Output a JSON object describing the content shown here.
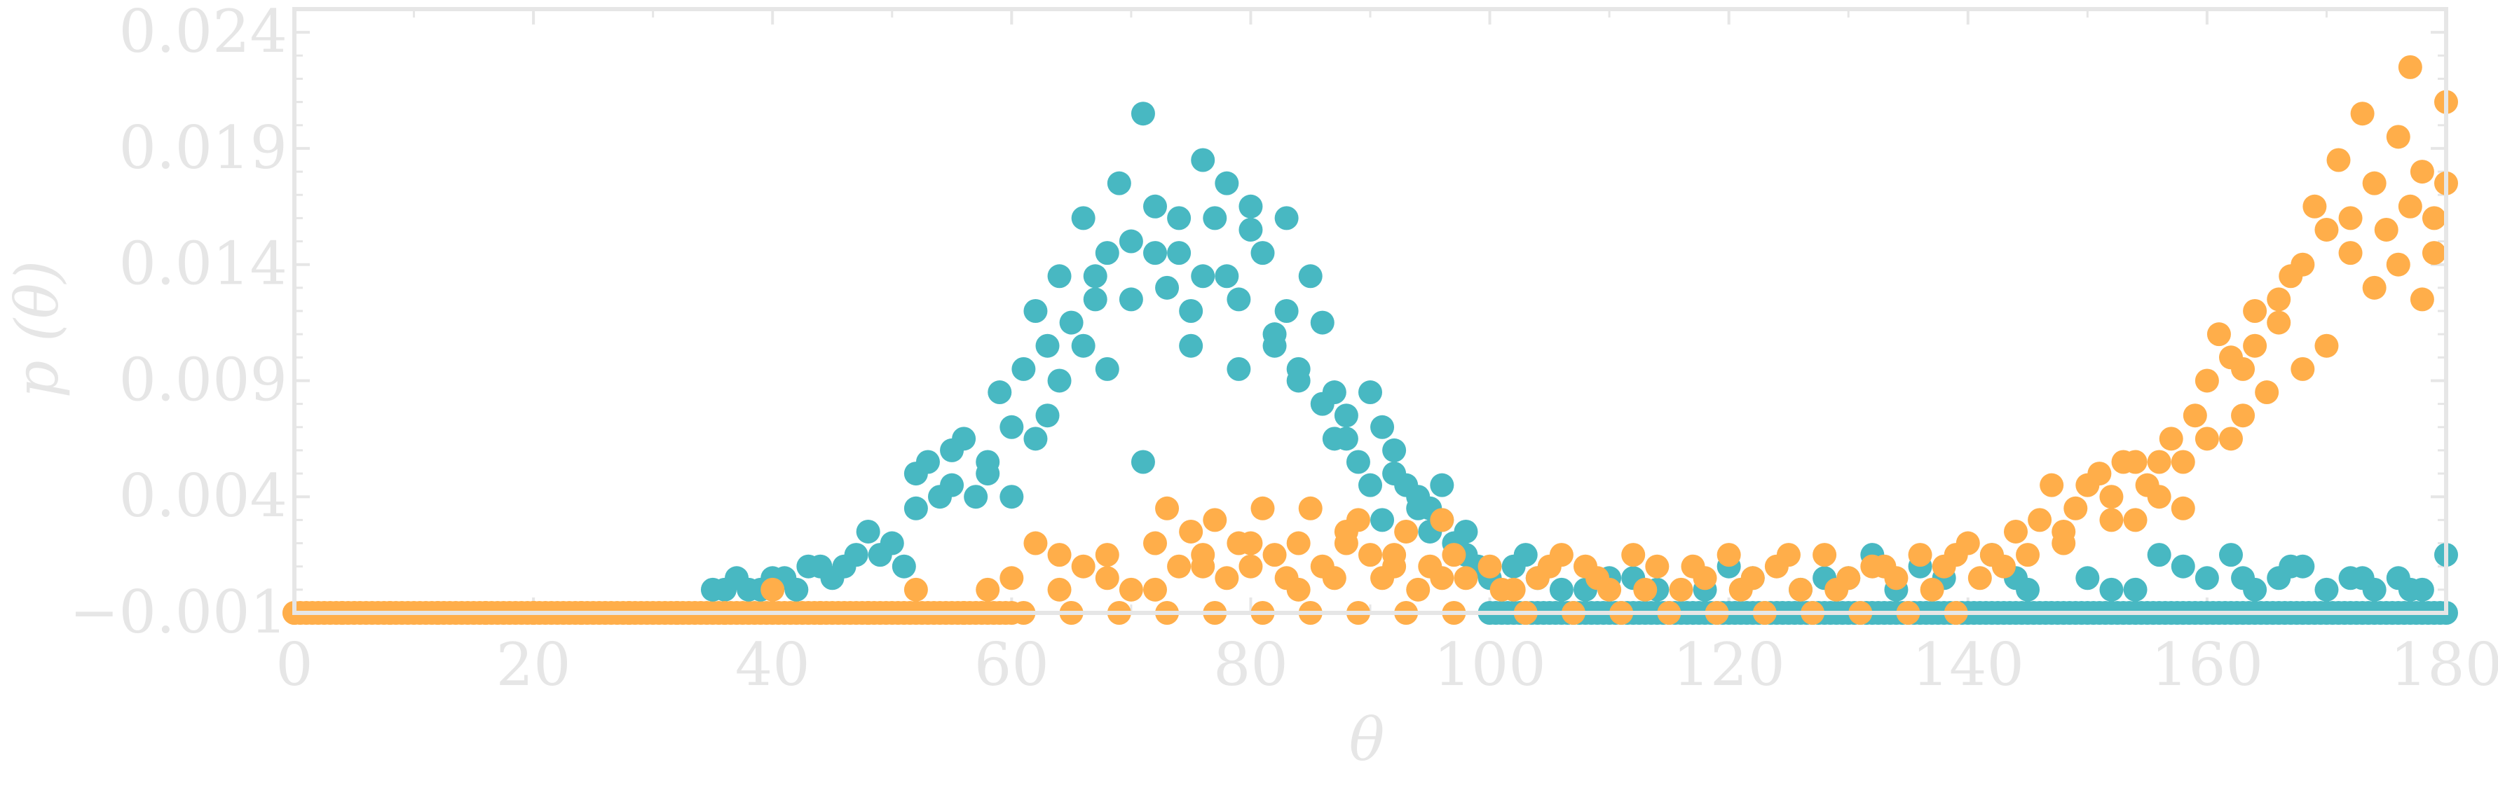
{
  "chart_data": {
    "type": "scatter",
    "xlabel": "θ",
    "ylabel": "p (θ)",
    "xlim": [
      0,
      180
    ],
    "ylim": [
      -0.001,
      0.025
    ],
    "x_ticks": [
      "0",
      "20",
      "40",
      "60",
      "80",
      "100",
      "120",
      "140",
      "160",
      "180"
    ],
    "y_ticks": [
      "−0.001",
      "0.004",
      "0.009",
      "0.014",
      "0.019",
      "0.024"
    ],
    "grid": false,
    "series": [
      {
        "color": "#48b8c2",
        "points": [
          [
            35,
            0.0
          ],
          [
            36,
            0.0
          ],
          [
            37,
            0.0005
          ],
          [
            38,
            0.0
          ],
          [
            39,
            0.0
          ],
          [
            40,
            0.0005
          ],
          [
            41,
            0.0005
          ],
          [
            42,
            0.0
          ],
          [
            43,
            0.001
          ],
          [
            44,
            0.001
          ],
          [
            45,
            0.0005
          ],
          [
            46,
            0.001
          ],
          [
            47,
            0.0015
          ],
          [
            48,
            0.0025
          ],
          [
            49,
            0.0015
          ],
          [
            50,
            0.002
          ],
          [
            51,
            0.001
          ],
          [
            52,
            0.005
          ],
          [
            53,
            0.0055
          ],
          [
            54,
            0.004
          ],
          [
            55,
            0.006
          ],
          [
            56,
            0.0065
          ],
          [
            57,
            0.004
          ],
          [
            58,
            0.0055
          ],
          [
            59,
            0.0085
          ],
          [
            60,
            0.007
          ],
          [
            61,
            0.0095
          ],
          [
            62,
            0.012
          ],
          [
            63,
            0.0105
          ],
          [
            64,
            0.0135
          ],
          [
            65,
            0.0115
          ],
          [
            66,
            0.016
          ],
          [
            67,
            0.0125
          ],
          [
            68,
            0.0145
          ],
          [
            69,
            0.0175
          ],
          [
            70,
            0.015
          ],
          [
            71,
            0.0205
          ],
          [
            72,
            0.0165
          ],
          [
            73,
            0.013
          ],
          [
            74,
            0.0145
          ],
          [
            75,
            0.012
          ],
          [
            76,
            0.0185
          ],
          [
            77,
            0.016
          ],
          [
            78,
            0.0135
          ],
          [
            79,
            0.0125
          ],
          [
            80,
            0.0165
          ],
          [
            81,
            0.0145
          ],
          [
            82,
            0.011
          ],
          [
            83,
            0.012
          ],
          [
            84,
            0.0095
          ],
          [
            85,
            0.0135
          ],
          [
            86,
            0.0115
          ],
          [
            87,
            0.0085
          ],
          [
            88,
            0.0075
          ],
          [
            89,
            0.0055
          ],
          [
            90,
            0.0045
          ],
          [
            91,
            0.007
          ],
          [
            92,
            0.006
          ],
          [
            93,
            0.0045
          ],
          [
            94,
            0.0035
          ],
          [
            95,
            0.0025
          ],
          [
            96,
            0.003
          ],
          [
            97,
            0.002
          ],
          [
            98,
            0.0015
          ],
          [
            99,
            0.001
          ],
          [
            100,
            0.0005
          ],
          [
            102,
            0.001
          ],
          [
            104,
            0.0005
          ],
          [
            106,
            0.0
          ],
          [
            108,
            0.0
          ],
          [
            110,
            0.0005
          ],
          [
            114,
            0.0
          ],
          [
            118,
            0.0
          ],
          [
            122,
            0.0005
          ],
          [
            126,
            0.0
          ],
          [
            130,
            0.0005
          ],
          [
            132,
            0.0015
          ],
          [
            134,
            0.0
          ],
          [
            138,
            0.0005
          ],
          [
            142,
            0.0015
          ],
          [
            145,
            0.0
          ],
          [
            150,
            0.0005
          ],
          [
            154,
            0.0
          ],
          [
            158,
            0.001
          ],
          [
            160,
            0.0005
          ],
          [
            162,
            0.0015
          ],
          [
            164,
            0.0
          ],
          [
            166,
            0.0005
          ],
          [
            168,
            0.001
          ],
          [
            170,
            0.0
          ],
          [
            172,
            0.0005
          ],
          [
            174,
            0.0
          ],
          [
            176,
            0.0005
          ],
          [
            178,
            0.0
          ],
          [
            180,
            0.0015
          ],
          [
            60,
            0.004
          ],
          [
            62,
            0.0065
          ],
          [
            64,
            0.009
          ],
          [
            66,
            0.0105
          ],
          [
            68,
            0.0095
          ],
          [
            70,
            0.0125
          ],
          [
            72,
            0.0145
          ],
          [
            74,
            0.016
          ],
          [
            76,
            0.0135
          ],
          [
            78,
            0.0175
          ],
          [
            80,
            0.0155
          ],
          [
            82,
            0.0105
          ],
          [
            84,
            0.009
          ],
          [
            86,
            0.008
          ],
          [
            88,
            0.0065
          ],
          [
            90,
            0.0085
          ],
          [
            92,
            0.005
          ],
          [
            94,
            0.004
          ],
          [
            96,
            0.0045
          ],
          [
            98,
            0.0025
          ],
          [
            52,
            0.0035
          ],
          [
            55,
            0.0045
          ],
          [
            58,
            0.005
          ],
          [
            63,
            0.0075
          ],
          [
            67,
            0.0135
          ],
          [
            71,
            0.0055
          ],
          [
            75,
            0.0105
          ],
          [
            79,
            0.0095
          ],
          [
            83,
            0.016
          ],
          [
            87,
            0.0065
          ],
          [
            91,
            0.003
          ],
          [
            95,
            0.0035
          ],
          [
            103,
            0.0015
          ],
          [
            112,
            0.0005
          ],
          [
            120,
            0.001
          ],
          [
            128,
            0.0005
          ],
          [
            136,
            0.001
          ],
          [
            144,
            0.0005
          ],
          [
            152,
            0.0
          ],
          [
            156,
            0.0015
          ],
          [
            163,
            0.0005
          ],
          [
            167,
            0.001
          ],
          [
            173,
            0.0005
          ],
          [
            177,
            0.0
          ]
        ]
      },
      {
        "color": "#ffae4a",
        "points": [
          [
            0,
            -0.001
          ],
          [
            4,
            -0.001
          ],
          [
            8,
            -0.001
          ],
          [
            12,
            -0.001
          ],
          [
            16,
            -0.001
          ],
          [
            20,
            -0.001
          ],
          [
            24,
            -0.001
          ],
          [
            28,
            -0.001
          ],
          [
            32,
            -0.001
          ],
          [
            36,
            -0.001
          ],
          [
            40,
            0.0
          ],
          [
            44,
            -0.001
          ],
          [
            48,
            -0.001
          ],
          [
            52,
            0.0
          ],
          [
            56,
            -0.001
          ],
          [
            58,
            0.0
          ],
          [
            60,
            0.0005
          ],
          [
            62,
            0.002
          ],
          [
            64,
            0.0
          ],
          [
            66,
            0.001
          ],
          [
            68,
            0.0015
          ],
          [
            70,
            0.0
          ],
          [
            72,
            0.002
          ],
          [
            73,
            0.0035
          ],
          [
            74,
            0.001
          ],
          [
            75,
            0.0025
          ],
          [
            76,
            0.0015
          ],
          [
            77,
            0.003
          ],
          [
            78,
            0.0005
          ],
          [
            79,
            0.002
          ],
          [
            80,
            0.001
          ],
          [
            81,
            0.0035
          ],
          [
            82,
            0.0015
          ],
          [
            83,
            0.0005
          ],
          [
            84,
            0.002
          ],
          [
            85,
            0.0035
          ],
          [
            86,
            0.001
          ],
          [
            87,
            0.0005
          ],
          [
            88,
            0.002
          ],
          [
            89,
            0.003
          ],
          [
            90,
            0.0015
          ],
          [
            91,
            0.0005
          ],
          [
            92,
            0.001
          ],
          [
            93,
            0.0025
          ],
          [
            94,
            0.0
          ],
          [
            95,
            0.001
          ],
          [
            96,
            0.003
          ],
          [
            97,
            0.0015
          ],
          [
            98,
            0.0005
          ],
          [
            100,
            0.001
          ],
          [
            102,
            0.0
          ],
          [
            104,
            0.0005
          ],
          [
            106,
            0.0015
          ],
          [
            108,
            0.001
          ],
          [
            110,
            0.0
          ],
          [
            112,
            0.0015
          ],
          [
            114,
            0.001
          ],
          [
            116,
            0.0
          ],
          [
            118,
            0.0005
          ],
          [
            120,
            0.0015
          ],
          [
            122,
            0.0005
          ],
          [
            124,
            0.001
          ],
          [
            126,
            0.0
          ],
          [
            128,
            0.0015
          ],
          [
            130,
            0.0005
          ],
          [
            132,
            0.001
          ],
          [
            134,
            0.0005
          ],
          [
            136,
            0.0015
          ],
          [
            138,
            0.001
          ],
          [
            140,
            0.002
          ],
          [
            141,
            0.0005
          ],
          [
            142,
            0.0015
          ],
          [
            143,
            0.001
          ],
          [
            144,
            0.0025
          ],
          [
            145,
            0.0015
          ],
          [
            146,
            0.003
          ],
          [
            147,
            0.0045
          ],
          [
            148,
            0.0025
          ],
          [
            149,
            0.0035
          ],
          [
            150,
            0.0045
          ],
          [
            151,
            0.005
          ],
          [
            152,
            0.004
          ],
          [
            153,
            0.0055
          ],
          [
            154,
            0.003
          ],
          [
            155,
            0.0045
          ],
          [
            156,
            0.0055
          ],
          [
            157,
            0.0065
          ],
          [
            158,
            0.0035
          ],
          [
            159,
            0.0075
          ],
          [
            160,
            0.009
          ],
          [
            161,
            0.011
          ],
          [
            162,
            0.0065
          ],
          [
            163,
            0.0095
          ],
          [
            164,
            0.012
          ],
          [
            165,
            0.0085
          ],
          [
            166,
            0.0115
          ],
          [
            167,
            0.0135
          ],
          [
            168,
            0.0095
          ],
          [
            169,
            0.0165
          ],
          [
            170,
            0.0155
          ],
          [
            171,
            0.0185
          ],
          [
            172,
            0.0145
          ],
          [
            173,
            0.0205
          ],
          [
            174,
            0.0175
          ],
          [
            175,
            0.0155
          ],
          [
            176,
            0.0195
          ],
          [
            177,
            0.0225
          ],
          [
            178,
            0.018
          ],
          [
            179,
            0.016
          ],
          [
            180,
            0.021
          ],
          [
            64,
            0.0015
          ],
          [
            68,
            0.0005
          ],
          [
            72,
            0.0
          ],
          [
            76,
            0.001
          ],
          [
            80,
            0.002
          ],
          [
            84,
            0.0
          ],
          [
            88,
            0.0025
          ],
          [
            92,
            0.0015
          ],
          [
            96,
            0.0005
          ],
          [
            101,
            0.0
          ],
          [
            105,
            0.001
          ],
          [
            109,
            0.0005
          ],
          [
            113,
            0.0
          ],
          [
            117,
            0.001
          ],
          [
            121,
            0.0
          ],
          [
            125,
            0.0015
          ],
          [
            129,
            0.0
          ],
          [
            133,
            0.001
          ],
          [
            137,
            0.0
          ],
          [
            139,
            0.0015
          ],
          [
            148,
            0.002
          ],
          [
            152,
            0.003
          ],
          [
            154,
            0.0055
          ],
          [
            156,
            0.004
          ],
          [
            158,
            0.0055
          ],
          [
            160,
            0.0065
          ],
          [
            162,
            0.01
          ],
          [
            163,
            0.0075
          ],
          [
            164,
            0.0105
          ],
          [
            166,
            0.0125
          ],
          [
            168,
            0.014
          ],
          [
            170,
            0.0105
          ],
          [
            172,
            0.016
          ],
          [
            174,
            0.013
          ],
          [
            176,
            0.014
          ],
          [
            177,
            0.0165
          ],
          [
            178,
            0.0125
          ],
          [
            179,
            0.0145
          ],
          [
            180,
            0.0175
          ],
          [
            61,
            -0.001
          ],
          [
            65,
            -0.001
          ],
          [
            69,
            -0.001
          ],
          [
            73,
            -0.001
          ],
          [
            77,
            -0.001
          ],
          [
            81,
            -0.001
          ],
          [
            85,
            -0.001
          ],
          [
            89,
            -0.001
          ],
          [
            93,
            -0.001
          ],
          [
            97,
            -0.001
          ],
          [
            103,
            -0.001
          ],
          [
            107,
            -0.001
          ],
          [
            111,
            -0.001
          ],
          [
            115,
            -0.001
          ],
          [
            119,
            -0.001
          ],
          [
            123,
            -0.001
          ],
          [
            127,
            -0.001
          ],
          [
            131,
            -0.001
          ],
          [
            135,
            -0.001
          ],
          [
            139,
            -0.001
          ]
        ]
      }
    ],
    "baseline": {
      "teal": {
        "y": -0.001,
        "x_range": [
          100,
          180
        ]
      },
      "orange": {
        "y": -0.001,
        "x_range": [
          0,
          60
        ]
      }
    }
  }
}
